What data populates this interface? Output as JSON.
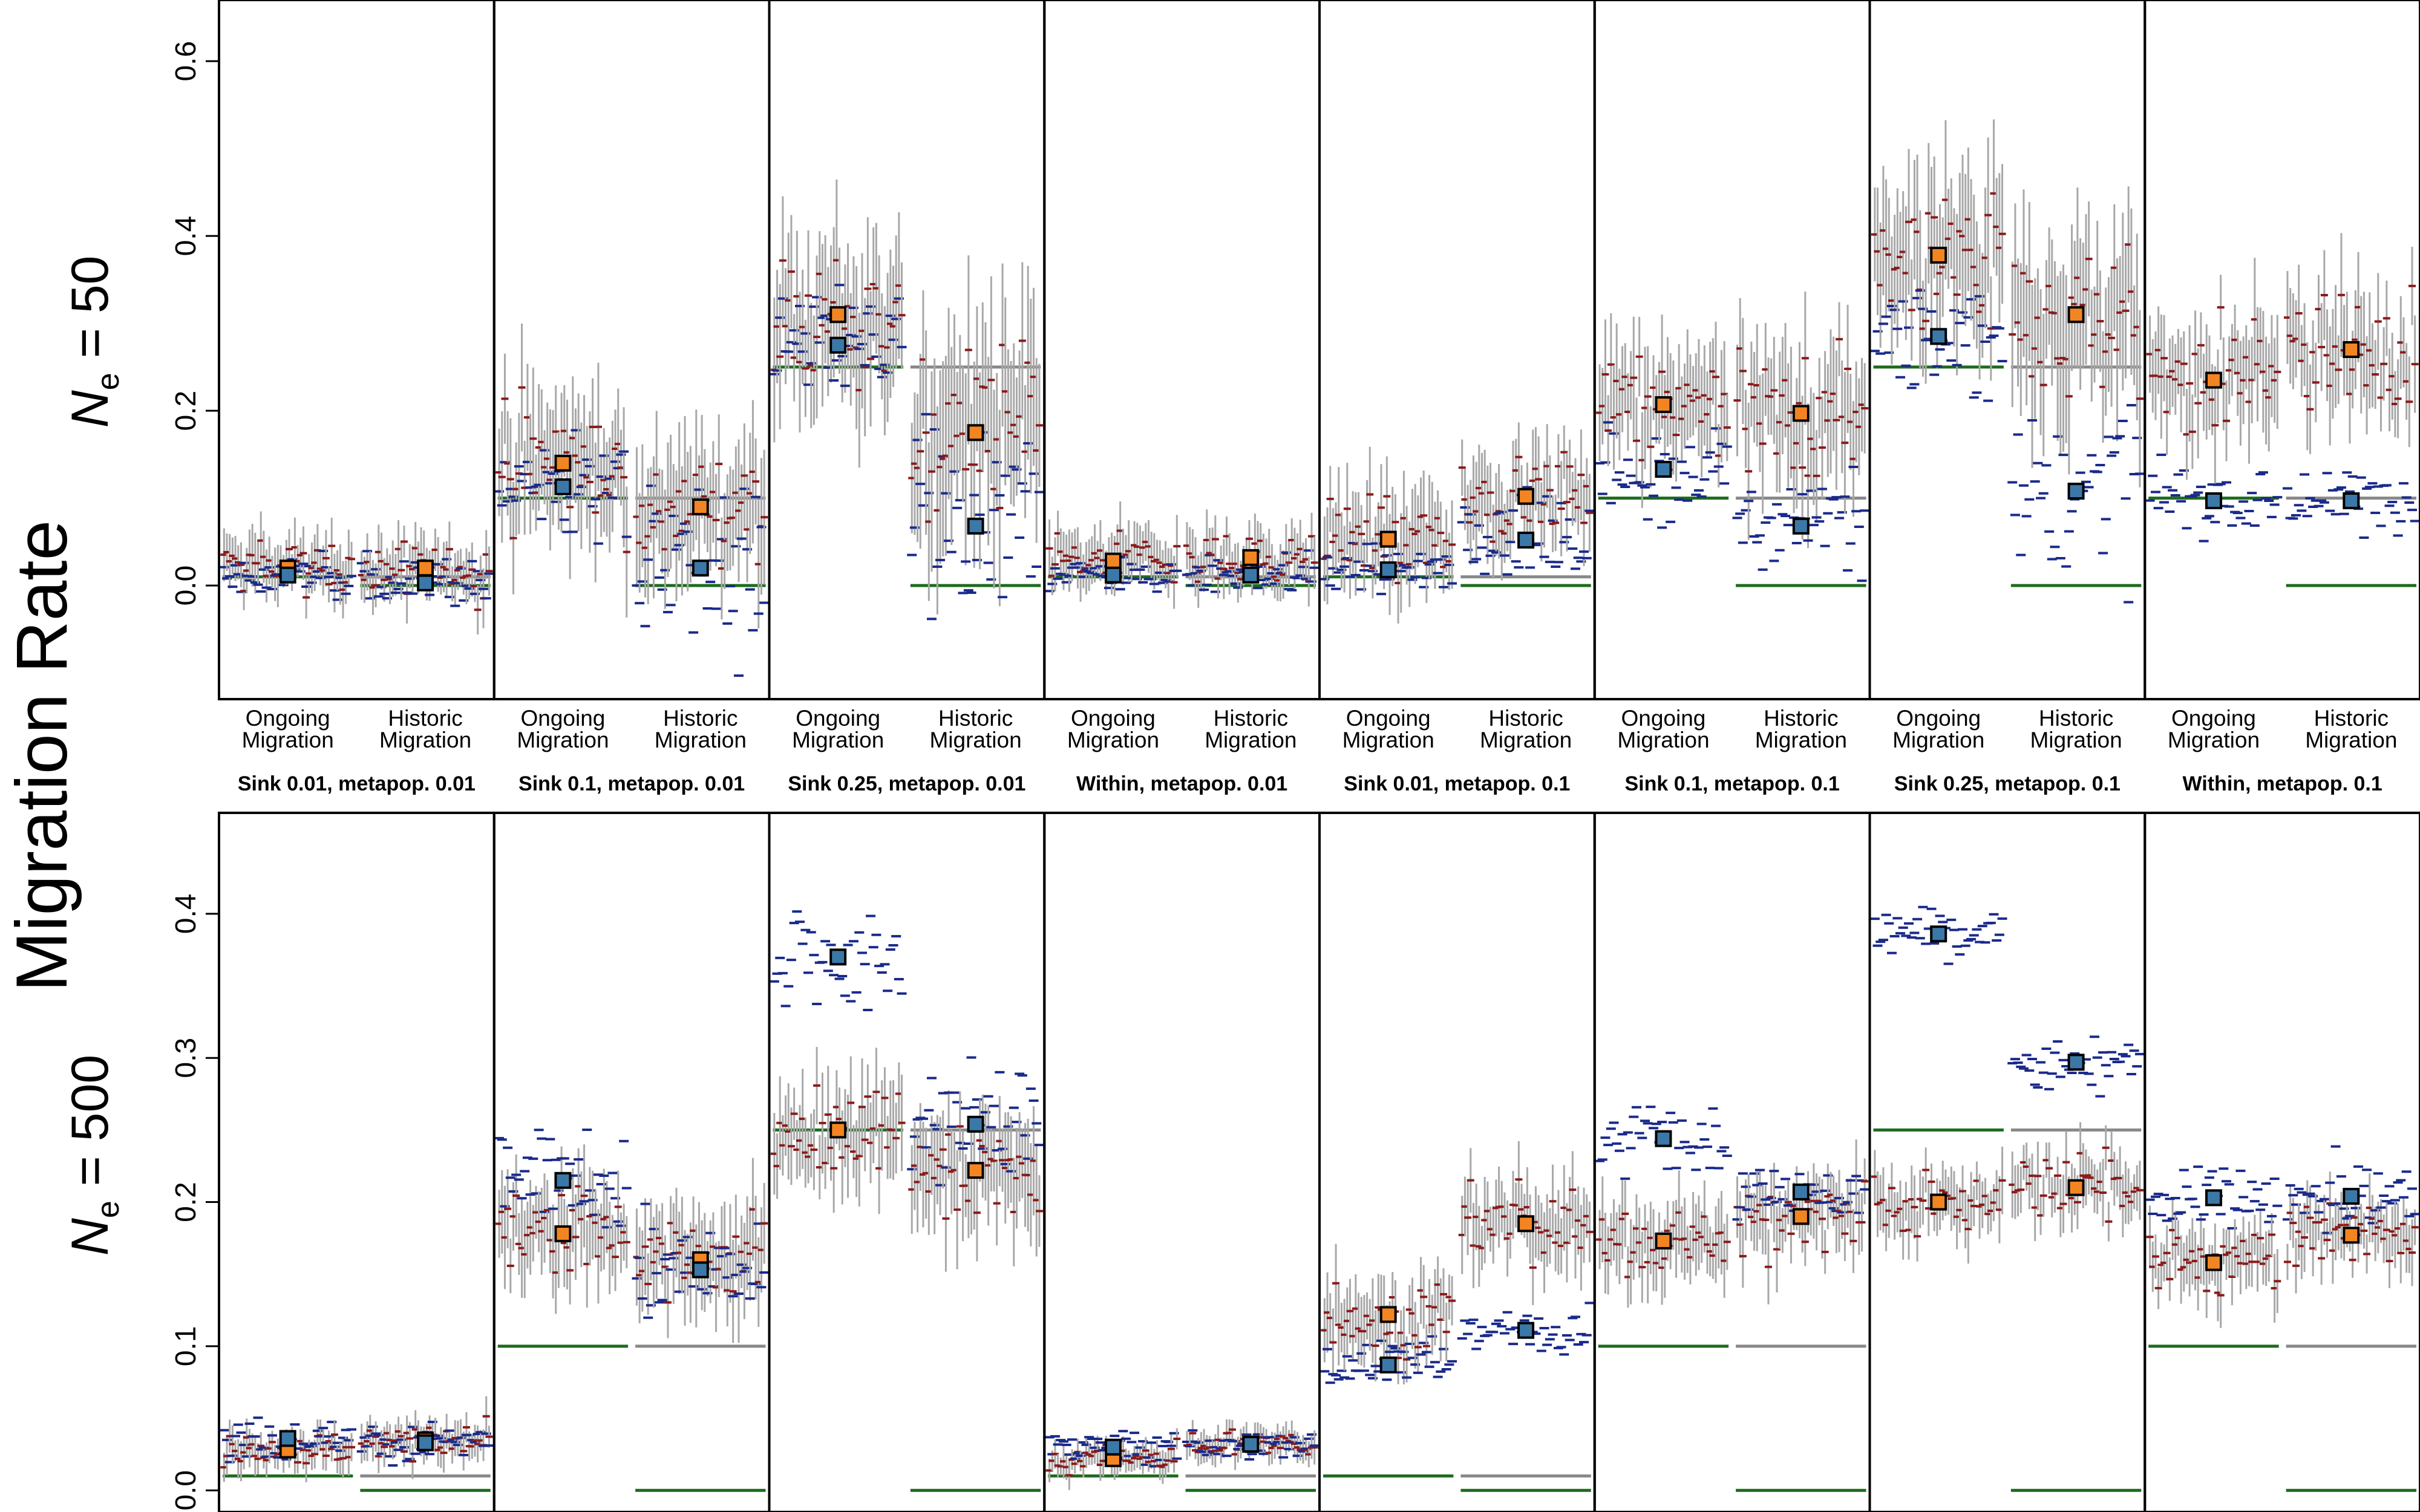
{
  "figure": {
    "ylabel": "Migration Rate",
    "condition_labels": [
      [
        "Ongoing",
        "Migration"
      ],
      [
        "Historic",
        "Migration"
      ]
    ],
    "group_labels": [
      "Sink 0.01, metapop. 0.01",
      "Sink 0.1, metapop. 0.01",
      "Sink 0.25, metapop. 0.01",
      "Within, metapop. 0.01",
      "Sink 0.01, metapop. 0.1",
      "Sink 0.1, metapop. 0.1",
      "Sink 0.25, metapop. 0.1",
      "Within, metapop. 0.1"
    ],
    "colors": {
      "orange_point": "#F28522",
      "blue_point": "#3B78A8",
      "true_value_line": "#1E6B1E",
      "reference_line": "#888888",
      "interval": "#A8A8A8",
      "replicate_red": "#8B1A1A",
      "replicate_blue": "#1A2A8B"
    }
  },
  "chart_data": [
    {
      "type": "scatter",
      "row_label": "N",
      "row_label_sub": "e",
      "row_label_suffix": " = 50",
      "ylim": [
        -0.13,
        0.67
      ],
      "yticks": [
        0.0,
        0.2,
        0.4,
        0.6
      ],
      "ytick_labels": [
        "0.0",
        "0.2",
        "0.4",
        "0.6"
      ],
      "panels": [
        {
          "orange": [
            0.02,
            0.02
          ],
          "blue": [
            0.012,
            0.003
          ],
          "true": [
            0.01,
            0.0
          ],
          "ref": [
            null,
            0.01
          ],
          "spread_red": [
            0.03,
            0.03
          ],
          "spread_blue": [
            0.02,
            0.025
          ]
        },
        {
          "orange": [
            0.14,
            0.09
          ],
          "blue": [
            0.113,
            0.02
          ],
          "true": [
            0.1,
            0.0
          ],
          "ref": [
            null,
            0.1
          ],
          "spread_red": [
            0.07,
            0.07
          ],
          "spread_blue": [
            0.05,
            0.08
          ]
        },
        {
          "orange": [
            0.31,
            0.175
          ],
          "blue": [
            0.275,
            0.068
          ],
          "true": [
            0.25,
            0.0
          ],
          "ref": [
            null,
            0.25
          ],
          "spread_red": [
            0.08,
            0.1
          ],
          "spread_blue": [
            0.05,
            0.1
          ]
        },
        {
          "orange": [
            0.028,
            0.032
          ],
          "blue": [
            0.012,
            0.012
          ],
          "true": [
            0.01,
            0.0
          ],
          "ref": [
            null,
            0.01
          ],
          "spread_red": [
            0.03,
            0.03
          ],
          "spread_blue": [
            0.015,
            0.02
          ]
        },
        {
          "orange": [
            0.053,
            0.102
          ],
          "blue": [
            0.018,
            0.052
          ],
          "true": [
            0.01,
            0.0
          ],
          "ref": [
            null,
            0.01
          ],
          "spread_red": [
            0.05,
            0.05
          ],
          "spread_blue": [
            0.025,
            0.04
          ]
        },
        {
          "orange": [
            0.207,
            0.197
          ],
          "blue": [
            0.133,
            0.068
          ],
          "true": [
            0.1,
            0.0
          ],
          "ref": [
            null,
            0.1
          ],
          "spread_red": [
            0.06,
            0.07
          ],
          "spread_blue": [
            0.05,
            0.06
          ]
        },
        {
          "orange": [
            0.378,
            0.31
          ],
          "blue": [
            0.285,
            0.108
          ],
          "true": [
            0.25,
            0.0
          ],
          "ref": [
            null,
            0.25
          ],
          "spread_red": [
            0.08,
            0.09
          ],
          "spread_blue": [
            0.06,
            0.08
          ]
        },
        {
          "orange": [
            0.235,
            0.27
          ],
          "blue": [
            0.097,
            0.097
          ],
          "true": [
            0.1,
            0.0
          ],
          "ref": [
            null,
            0.1
          ],
          "spread_red": [
            0.06,
            0.06
          ],
          "spread_blue": [
            0.03,
            0.03
          ]
        }
      ]
    },
    {
      "type": "scatter",
      "row_label": "N",
      "row_label_sub": "e",
      "row_label_suffix": " = 500",
      "ylim": [
        -0.015,
        0.47
      ],
      "yticks": [
        0.0,
        0.1,
        0.2,
        0.3,
        0.4
      ],
      "ytick_labels": [
        "0.0",
        "0.1",
        "0.2",
        "0.3",
        "0.4"
      ],
      "panels": [
        {
          "orange": [
            0.028,
            0.035
          ],
          "blue": [
            0.036,
            0.033
          ],
          "true": [
            0.01,
            0.0
          ],
          "ref": [
            null,
            0.01
          ],
          "spread_red": [
            0.012,
            0.012
          ],
          "spread_blue": [
            0.012,
            0.012
          ]
        },
        {
          "orange": [
            0.178,
            0.16
          ],
          "blue": [
            0.215,
            0.153
          ],
          "true": [
            0.1,
            0.0
          ],
          "ref": [
            null,
            0.1
          ],
          "spread_red": [
            0.03,
            0.03
          ],
          "spread_blue": [
            0.03,
            0.03
          ]
        },
        {
          "orange": [
            0.25,
            0.222
          ],
          "blue": [
            0.37,
            0.254
          ],
          "true": [
            0.25,
            0.0
          ],
          "ref": [
            null,
            0.25
          ],
          "spread_red": [
            0.03,
            0.035
          ],
          "spread_blue": [
            0.03,
            0.035
          ]
        },
        {
          "orange": [
            0.022,
            0.032
          ],
          "blue": [
            0.03,
            0.032
          ],
          "true": [
            0.01,
            0.0
          ],
          "ref": [
            null,
            0.01
          ],
          "spread_red": [
            0.01,
            0.01
          ],
          "spread_blue": [
            0.01,
            0.01
          ]
        },
        {
          "orange": [
            0.122,
            0.185
          ],
          "blue": [
            0.087,
            0.111
          ],
          "true": [
            0.01,
            0.0
          ],
          "ref": [
            null,
            0.01
          ],
          "spread_red": [
            0.025,
            0.025
          ],
          "spread_blue": [
            0.015,
            0.012
          ]
        },
        {
          "orange": [
            0.173,
            0.19
          ],
          "blue": [
            0.244,
            0.207
          ],
          "true": [
            0.1,
            0.0
          ],
          "ref": [
            null,
            0.1
          ],
          "spread_red": [
            0.025,
            0.025
          ],
          "spread_blue": [
            0.025,
            0.02
          ]
        },
        {
          "orange": [
            0.2,
            0.21
          ],
          "blue": [
            0.386,
            0.297
          ],
          "true": [
            0.25,
            0.0
          ],
          "ref": [
            null,
            0.25
          ],
          "spread_red": [
            0.02,
            0.02
          ],
          "spread_blue": [
            0.015,
            0.015
          ]
        },
        {
          "orange": [
            0.158,
            0.177
          ],
          "blue": [
            0.203,
            0.204
          ],
          "true": [
            0.1,
            0.0
          ],
          "ref": [
            null,
            0.1
          ],
          "spread_red": [
            0.02,
            0.02
          ],
          "spread_blue": [
            0.02,
            0.02
          ]
        }
      ]
    }
  ]
}
